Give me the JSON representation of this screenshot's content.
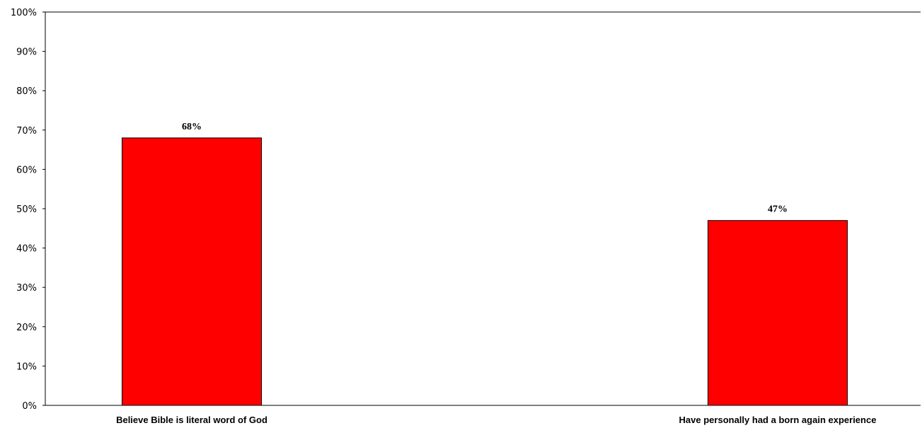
{
  "chart_data": {
    "type": "bar",
    "categories": [
      "Believe Bible is literal word of God",
      "Have personally had a born again experience"
    ],
    "values": [
      68,
      47
    ],
    "data_labels": [
      "68%",
      "47%"
    ],
    "y_ticks": [
      "0%",
      "10%",
      "20%",
      "30%",
      "40%",
      "50%",
      "60%",
      "70%",
      "80%",
      "90%",
      "100%"
    ],
    "ylim": [
      0,
      100
    ],
    "grid": false,
    "legend": "none",
    "bar_color": "#ff0000",
    "bar_stroke": "#000000",
    "title": "",
    "xlabel": "",
    "ylabel": ""
  }
}
